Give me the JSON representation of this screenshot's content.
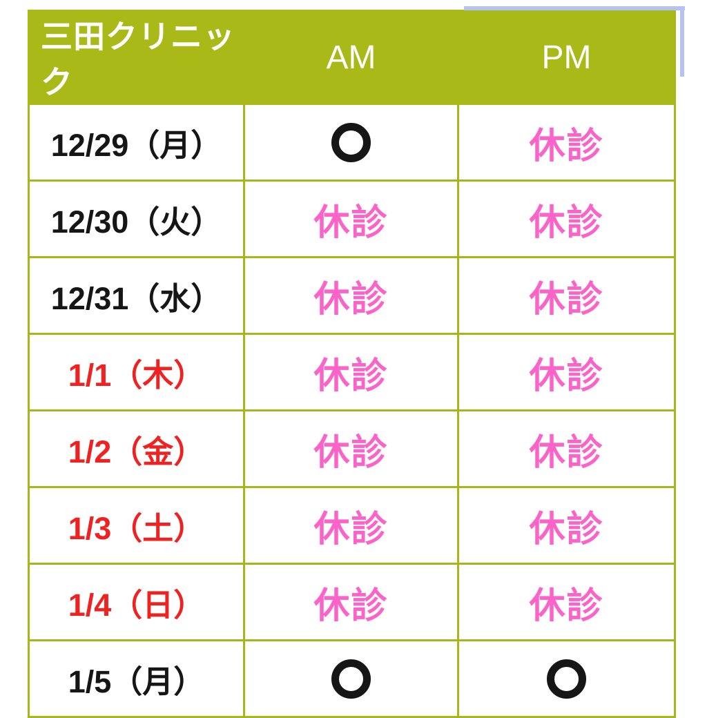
{
  "page": {
    "background": "#ffffff"
  },
  "chart_data": {
    "type": "table",
    "title": "三田クリニック",
    "columns": [
      "三田クリニック",
      "AM",
      "PM"
    ],
    "open_symbol": "〇",
    "closed_label": "休診",
    "rows": [
      {
        "date": "12/29（月）",
        "date_color": "black",
        "am": "〇",
        "pm": "休診"
      },
      {
        "date": "12/30（火）",
        "date_color": "black",
        "am": "休診",
        "pm": "休診"
      },
      {
        "date": "12/31（水）",
        "date_color": "black",
        "am": "休診",
        "pm": "休診"
      },
      {
        "date": "1/1（木）",
        "date_color": "red",
        "am": "休診",
        "pm": "休診"
      },
      {
        "date": "1/2（金）",
        "date_color": "red",
        "am": "休診",
        "pm": "休診"
      },
      {
        "date": "1/3（土）",
        "date_color": "red",
        "am": "休診",
        "pm": "休診"
      },
      {
        "date": "1/4（日）",
        "date_color": "red",
        "am": "休診",
        "pm": "休診"
      },
      {
        "date": "1/5（月）",
        "date_color": "black",
        "am": "〇",
        "pm": "〇"
      }
    ],
    "legend": {
      "open_meaning": "open",
      "closed_meaning": "closed"
    }
  },
  "colors": {
    "header_green": "#a9b918",
    "border_green": "#a4b71b",
    "closed_pink": "#fa64c8",
    "holiday_red": "#ef2222",
    "text_black": "#161616",
    "selection_blue": "#b4c3f2",
    "header_text_white": "#ffffff"
  }
}
